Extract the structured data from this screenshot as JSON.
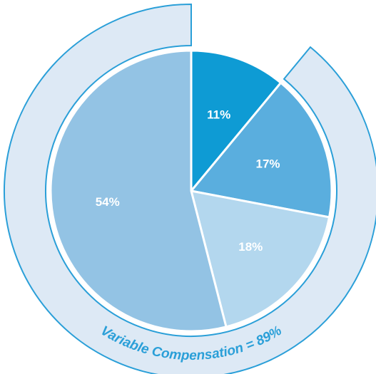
{
  "chart_data": {
    "type": "pie",
    "title": "",
    "slices": [
      {
        "label": "11%",
        "value": 11,
        "color": "#0e9bd4"
      },
      {
        "label": "17%",
        "value": 17,
        "color": "#5aaede"
      },
      {
        "label": "18%",
        "value": 18,
        "color": "#b3d7ee"
      },
      {
        "label": "54%",
        "value": 54,
        "color": "#93c3e4"
      }
    ],
    "outer_arc": {
      "label": "Variable Compensation = 89%",
      "value": 89,
      "fill_color": "#dde9f5",
      "stroke_color": "#2a9fd8"
    },
    "colors": {
      "arc_text": "#2a9fd8",
      "slice_text": "#ffffff",
      "slice_border": "#ffffff"
    }
  }
}
